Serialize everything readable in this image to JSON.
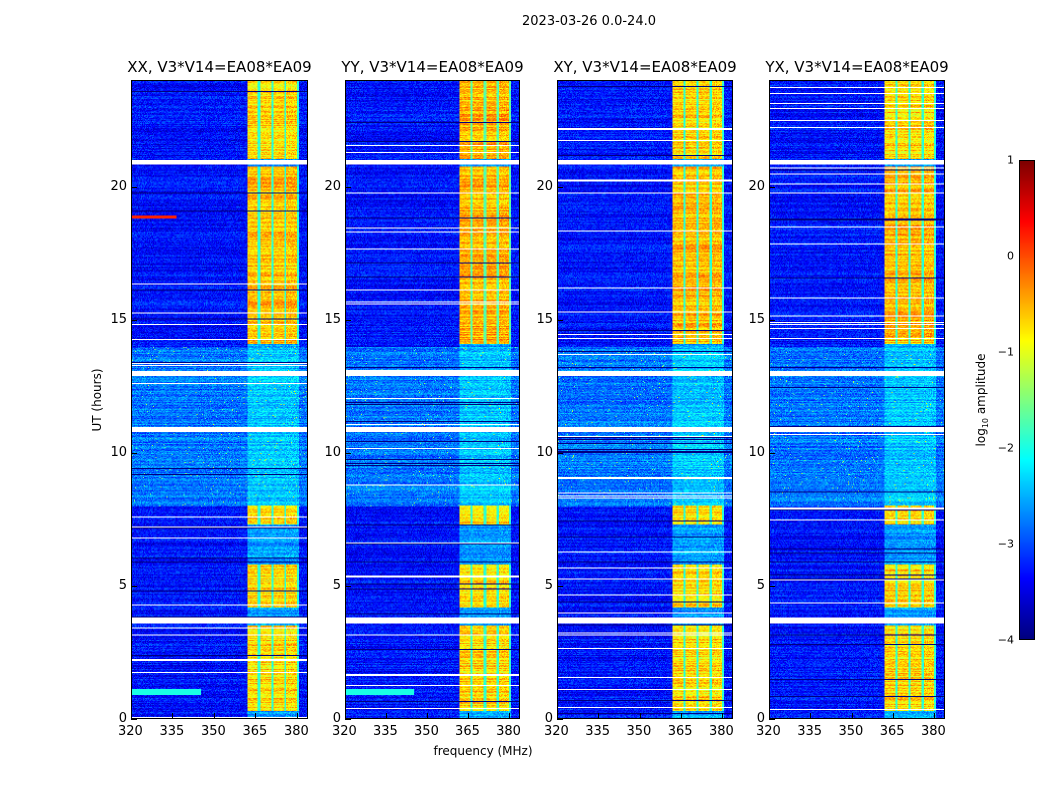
{
  "chart_data": {
    "type": "heatmap",
    "title": "2023-03-26 0.0-24.0",
    "xlabel": "frequency (MHz)",
    "ylabel": "UT (hours)",
    "xlim": [
      320,
      384
    ],
    "ylim": [
      0,
      24
    ],
    "xticks": [
      "320",
      "335",
      "350",
      "365",
      "380"
    ],
    "yticks": [
      "0",
      "5",
      "10",
      "15",
      "20"
    ],
    "panels": [
      {
        "title": "XX, V3*V14=EA08*EA09"
      },
      {
        "title": "YY, V3*V14=EA08*EA09"
      },
      {
        "title": "XY, V3*V14=EA08*EA09"
      },
      {
        "title": "YX, V3*V14=EA08*EA09"
      }
    ],
    "colorbar": {
      "label_main": "log",
      "label_sub": "10",
      "label_rest": " amplitude",
      "colormap": "jet",
      "range": [
        -4,
        1
      ],
      "ticks": [
        "1",
        "0",
        "−1",
        "−2",
        "−3",
        "−4"
      ]
    },
    "features": {
      "rfi_band_mhz": [
        362,
        381
      ],
      "rfi_active_hours": [
        [
          0.3,
          3.5
        ],
        [
          4.2,
          5.8
        ],
        [
          7.3,
          8.0
        ],
        [
          14.1,
          20.8
        ],
        [
          21.1,
          24.0
        ]
      ],
      "flagged_hours": [
        [
          3.6,
          3.8
        ],
        [
          10.8,
          11.0
        ],
        [
          12.9,
          13.1
        ],
        [
          20.85,
          21.05
        ]
      ],
      "noisy_hours": [
        8.0,
        14.0
      ],
      "background_log10": -3.3,
      "rfi_log10": -0.7
    }
  }
}
